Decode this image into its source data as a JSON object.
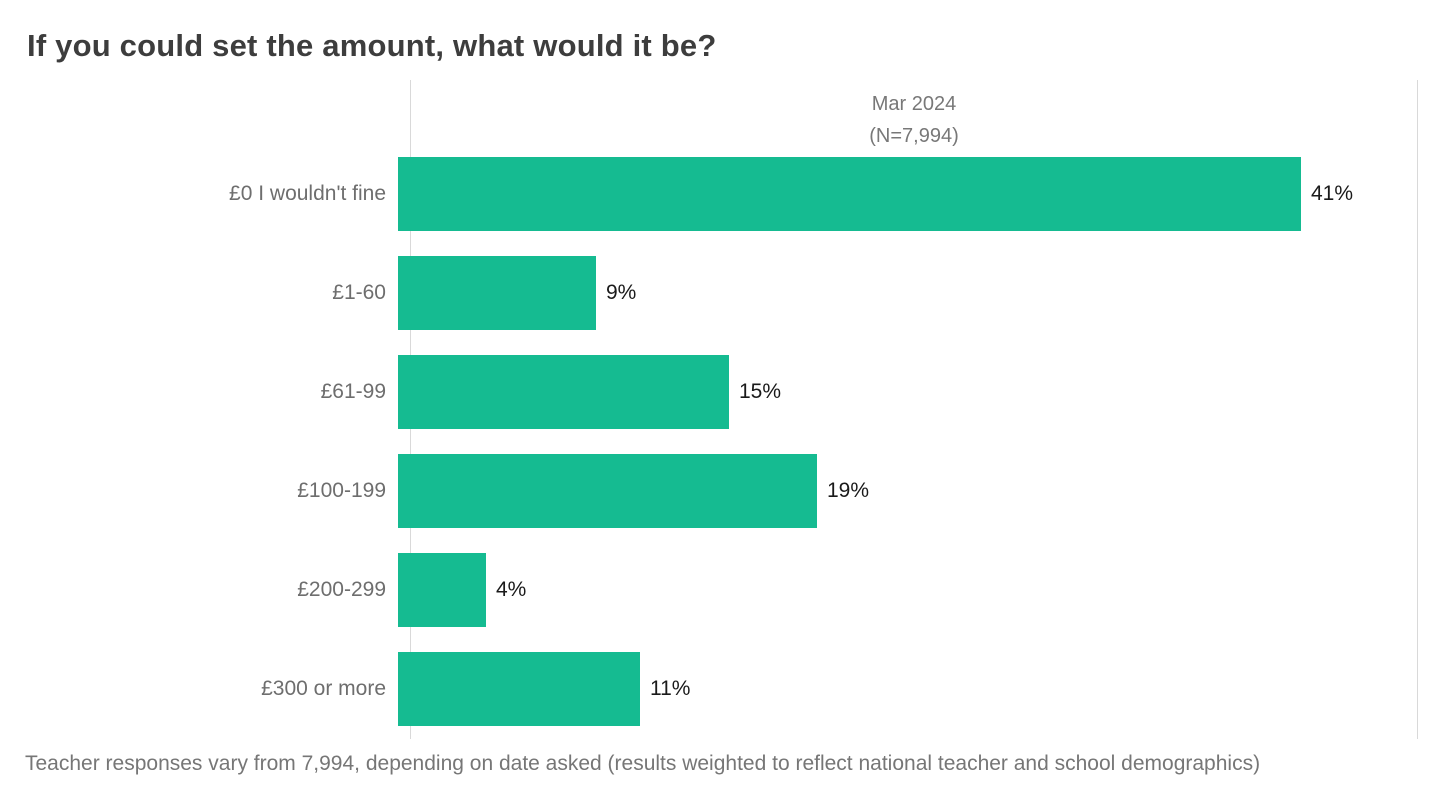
{
  "chart_data": {
    "type": "bar",
    "orientation": "horizontal",
    "title": "If you could set the amount, what would it be?",
    "column_header_line1": "Mar 2024",
    "column_header_line2": "(N=7,994)",
    "categories": [
      "£0 I wouldn't fine",
      "£1-60",
      "£61-99",
      "£100-199",
      "£200-299",
      "£300 or more"
    ],
    "values": [
      41,
      9,
      15,
      19,
      4,
      11
    ],
    "value_labels": [
      "41%",
      "9%",
      "15%",
      "19%",
      "4%",
      "11%"
    ],
    "unit": "%",
    "xlim": [
      0,
      45.7
    ],
    "grid": "off",
    "legend": "none",
    "footnote": "Teacher responses vary from 7,994, depending on date asked (results weighted to reflect national teacher and school demographics)"
  },
  "colors": {
    "bar": "#15bb91",
    "title_text": "#3d3d3d",
    "category_text": "#6e6e6e",
    "value_text": "#1a1a1a",
    "muted_text": "#787878",
    "axis_line": "#d9d9d9"
  }
}
